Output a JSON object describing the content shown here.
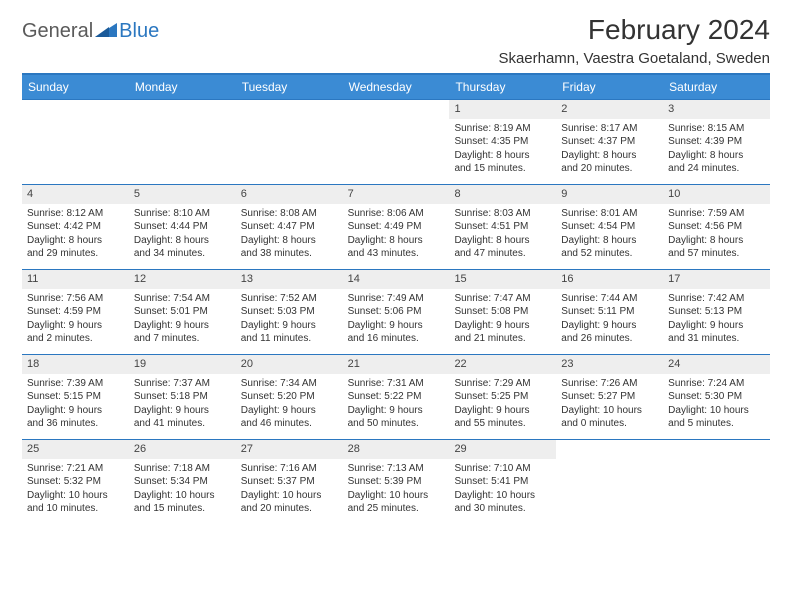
{
  "logo": {
    "text1": "General",
    "text2": "Blue"
  },
  "title": "February 2024",
  "location": "Skaerhamn, Vaestra Goetaland, Sweden",
  "colors": {
    "header_bg": "#3b8bd4",
    "header_text": "#ffffff",
    "border": "#2b77c0",
    "daynum_bg": "#eeeeee",
    "text": "#333333",
    "logo_gray": "#5a5a5a",
    "logo_blue": "#2b77c0",
    "background": "#ffffff"
  },
  "fonts": {
    "title_size": 28,
    "location_size": 15,
    "dayheader_size": 12,
    "daynum_size": 11,
    "cell_size": 10,
    "logo_size": 20
  },
  "day_headers": [
    "Sunday",
    "Monday",
    "Tuesday",
    "Wednesday",
    "Thursday",
    "Friday",
    "Saturday"
  ],
  "weeks": [
    [
      {
        "n": "",
        "lines": []
      },
      {
        "n": "",
        "lines": []
      },
      {
        "n": "",
        "lines": []
      },
      {
        "n": "",
        "lines": []
      },
      {
        "n": "1",
        "lines": [
          "Sunrise: 8:19 AM",
          "Sunset: 4:35 PM",
          "Daylight: 8 hours",
          "and 15 minutes."
        ]
      },
      {
        "n": "2",
        "lines": [
          "Sunrise: 8:17 AM",
          "Sunset: 4:37 PM",
          "Daylight: 8 hours",
          "and 20 minutes."
        ]
      },
      {
        "n": "3",
        "lines": [
          "Sunrise: 8:15 AM",
          "Sunset: 4:39 PM",
          "Daylight: 8 hours",
          "and 24 minutes."
        ]
      }
    ],
    [
      {
        "n": "4",
        "lines": [
          "Sunrise: 8:12 AM",
          "Sunset: 4:42 PM",
          "Daylight: 8 hours",
          "and 29 minutes."
        ]
      },
      {
        "n": "5",
        "lines": [
          "Sunrise: 8:10 AM",
          "Sunset: 4:44 PM",
          "Daylight: 8 hours",
          "and 34 minutes."
        ]
      },
      {
        "n": "6",
        "lines": [
          "Sunrise: 8:08 AM",
          "Sunset: 4:47 PM",
          "Daylight: 8 hours",
          "and 38 minutes."
        ]
      },
      {
        "n": "7",
        "lines": [
          "Sunrise: 8:06 AM",
          "Sunset: 4:49 PM",
          "Daylight: 8 hours",
          "and 43 minutes."
        ]
      },
      {
        "n": "8",
        "lines": [
          "Sunrise: 8:03 AM",
          "Sunset: 4:51 PM",
          "Daylight: 8 hours",
          "and 47 minutes."
        ]
      },
      {
        "n": "9",
        "lines": [
          "Sunrise: 8:01 AM",
          "Sunset: 4:54 PM",
          "Daylight: 8 hours",
          "and 52 minutes."
        ]
      },
      {
        "n": "10",
        "lines": [
          "Sunrise: 7:59 AM",
          "Sunset: 4:56 PM",
          "Daylight: 8 hours",
          "and 57 minutes."
        ]
      }
    ],
    [
      {
        "n": "11",
        "lines": [
          "Sunrise: 7:56 AM",
          "Sunset: 4:59 PM",
          "Daylight: 9 hours",
          "and 2 minutes."
        ]
      },
      {
        "n": "12",
        "lines": [
          "Sunrise: 7:54 AM",
          "Sunset: 5:01 PM",
          "Daylight: 9 hours",
          "and 7 minutes."
        ]
      },
      {
        "n": "13",
        "lines": [
          "Sunrise: 7:52 AM",
          "Sunset: 5:03 PM",
          "Daylight: 9 hours",
          "and 11 minutes."
        ]
      },
      {
        "n": "14",
        "lines": [
          "Sunrise: 7:49 AM",
          "Sunset: 5:06 PM",
          "Daylight: 9 hours",
          "and 16 minutes."
        ]
      },
      {
        "n": "15",
        "lines": [
          "Sunrise: 7:47 AM",
          "Sunset: 5:08 PM",
          "Daylight: 9 hours",
          "and 21 minutes."
        ]
      },
      {
        "n": "16",
        "lines": [
          "Sunrise: 7:44 AM",
          "Sunset: 5:11 PM",
          "Daylight: 9 hours",
          "and 26 minutes."
        ]
      },
      {
        "n": "17",
        "lines": [
          "Sunrise: 7:42 AM",
          "Sunset: 5:13 PM",
          "Daylight: 9 hours",
          "and 31 minutes."
        ]
      }
    ],
    [
      {
        "n": "18",
        "lines": [
          "Sunrise: 7:39 AM",
          "Sunset: 5:15 PM",
          "Daylight: 9 hours",
          "and 36 minutes."
        ]
      },
      {
        "n": "19",
        "lines": [
          "Sunrise: 7:37 AM",
          "Sunset: 5:18 PM",
          "Daylight: 9 hours",
          "and 41 minutes."
        ]
      },
      {
        "n": "20",
        "lines": [
          "Sunrise: 7:34 AM",
          "Sunset: 5:20 PM",
          "Daylight: 9 hours",
          "and 46 minutes."
        ]
      },
      {
        "n": "21",
        "lines": [
          "Sunrise: 7:31 AM",
          "Sunset: 5:22 PM",
          "Daylight: 9 hours",
          "and 50 minutes."
        ]
      },
      {
        "n": "22",
        "lines": [
          "Sunrise: 7:29 AM",
          "Sunset: 5:25 PM",
          "Daylight: 9 hours",
          "and 55 minutes."
        ]
      },
      {
        "n": "23",
        "lines": [
          "Sunrise: 7:26 AM",
          "Sunset: 5:27 PM",
          "Daylight: 10 hours",
          "and 0 minutes."
        ]
      },
      {
        "n": "24",
        "lines": [
          "Sunrise: 7:24 AM",
          "Sunset: 5:30 PM",
          "Daylight: 10 hours",
          "and 5 minutes."
        ]
      }
    ],
    [
      {
        "n": "25",
        "lines": [
          "Sunrise: 7:21 AM",
          "Sunset: 5:32 PM",
          "Daylight: 10 hours",
          "and 10 minutes."
        ]
      },
      {
        "n": "26",
        "lines": [
          "Sunrise: 7:18 AM",
          "Sunset: 5:34 PM",
          "Daylight: 10 hours",
          "and 15 minutes."
        ]
      },
      {
        "n": "27",
        "lines": [
          "Sunrise: 7:16 AM",
          "Sunset: 5:37 PM",
          "Daylight: 10 hours",
          "and 20 minutes."
        ]
      },
      {
        "n": "28",
        "lines": [
          "Sunrise: 7:13 AM",
          "Sunset: 5:39 PM",
          "Daylight: 10 hours",
          "and 25 minutes."
        ]
      },
      {
        "n": "29",
        "lines": [
          "Sunrise: 7:10 AM",
          "Sunset: 5:41 PM",
          "Daylight: 10 hours",
          "and 30 minutes."
        ]
      },
      {
        "n": "",
        "lines": []
      },
      {
        "n": "",
        "lines": []
      }
    ]
  ]
}
